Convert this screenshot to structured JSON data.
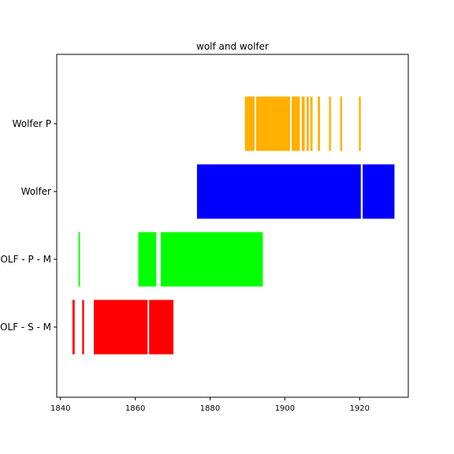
{
  "chart_data": {
    "type": "bar",
    "orientation": "horizontal-timeline",
    "title": "wolf and wolfer",
    "xlabel": "",
    "ylabel": "",
    "xlim": [
      1839,
      1933
    ],
    "xticks": [
      1840,
      1860,
      1880,
      1900,
      1920
    ],
    "xtick_labels": [
      "1840",
      "1860",
      "1880",
      "1900",
      "1920"
    ],
    "categories": [
      "OLF - S - M",
      "OLF - P - M",
      "Wolfer",
      "Wolfer P"
    ],
    "grid": false,
    "series": [
      {
        "category": "OLF - S - M",
        "color": "#ff0000",
        "intervals": [
          [
            1843.2,
            1843.8
          ],
          [
            1845.8,
            1846.3
          ],
          [
            1848.9,
            1863.3
          ],
          [
            1863.7,
            1870.2
          ]
        ]
      },
      {
        "category": "OLF - P - M",
        "color": "#00ff00",
        "intervals": [
          [
            1844.8,
            1845.2
          ],
          [
            1860.8,
            1865.6
          ],
          [
            1866.8,
            1894.1
          ]
        ]
      },
      {
        "category": "Wolfer",
        "color": "#0000ff",
        "intervals": [
          [
            1876.5,
            1920.3
          ],
          [
            1920.8,
            1929.3
          ]
        ]
      },
      {
        "category": "Wolfer P",
        "color": "#ffb000",
        "intervals": [
          [
            1889.3,
            1891.9
          ],
          [
            1892.3,
            1901.4
          ],
          [
            1901.8,
            1904.0
          ],
          [
            1904.5,
            1905.3
          ],
          [
            1905.8,
            1906.4
          ],
          [
            1906.8,
            1907.4
          ],
          [
            1908.8,
            1909.4
          ],
          [
            1911.8,
            1912.3
          ],
          [
            1914.8,
            1915.3
          ],
          [
            1919.8,
            1920.3
          ]
        ]
      }
    ]
  }
}
